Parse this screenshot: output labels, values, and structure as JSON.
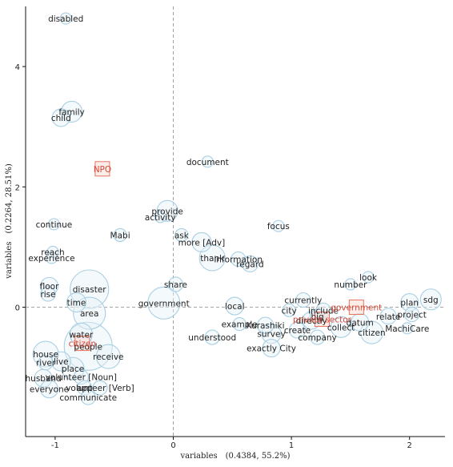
{
  "chart_data": {
    "type": "scatter",
    "title": "",
    "xlabel": "variables　(0.4384,  55.2%)",
    "ylabel": "variables　(0.2264,  28.51%)",
    "xlim": [
      -1.25,
      2.3
    ],
    "ylim": [
      -2.15,
      5.0
    ],
    "xticks": [
      -1,
      0,
      1,
      2
    ],
    "yticks": [
      0,
      2,
      4
    ],
    "reference_lines": {
      "x": 0,
      "y": 0,
      "style": "dashed"
    },
    "colors": {
      "words": "#a9cfe3",
      "variables": "#e9735f",
      "variable_text": "#d64a3a"
    },
    "words": [
      {
        "label": "disabled",
        "x": -0.91,
        "y": 4.8,
        "size": 7
      },
      {
        "label": "child",
        "x": -0.95,
        "y": 3.15,
        "size": 11
      },
      {
        "label": "family",
        "x": -0.86,
        "y": 3.25,
        "size": 13
      },
      {
        "label": "document",
        "x": 0.29,
        "y": 2.42,
        "size": 7
      },
      {
        "label": "provide",
        "x": -0.05,
        "y": 1.6,
        "size": 13
      },
      {
        "label": "activity",
        "x": -0.11,
        "y": 1.5,
        "size": 7
      },
      {
        "label": "continue",
        "x": -1.01,
        "y": 1.38,
        "size": 7
      },
      {
        "label": "Mabi",
        "x": -0.45,
        "y": 1.2,
        "size": 8
      },
      {
        "label": "ask",
        "x": 0.07,
        "y": 1.2,
        "size": 8
      },
      {
        "label": "more [Adv]",
        "x": 0.24,
        "y": 1.08,
        "size": 12
      },
      {
        "label": "focus",
        "x": 0.89,
        "y": 1.35,
        "size": 7
      },
      {
        "label": "thank",
        "x": 0.33,
        "y": 0.82,
        "size": 16
      },
      {
        "label": "reach",
        "x": -1.02,
        "y": 0.92,
        "size": 7
      },
      {
        "label": "information",
        "x": 0.55,
        "y": 0.8,
        "size": 9
      },
      {
        "label": "regard",
        "x": 0.65,
        "y": 0.72,
        "size": 10
      },
      {
        "label": "experience",
        "x": -1.03,
        "y": 0.82,
        "size": 7
      },
      {
        "label": "look",
        "x": 1.65,
        "y": 0.5,
        "size": 7
      },
      {
        "label": "share",
        "x": 0.02,
        "y": 0.38,
        "size": 9
      },
      {
        "label": "floor",
        "x": -1.05,
        "y": 0.35,
        "size": 11
      },
      {
        "label": "disaster",
        "x": -0.71,
        "y": 0.3,
        "size": 24
      },
      {
        "label": "rise",
        "x": -1.06,
        "y": 0.22,
        "size": 9
      },
      {
        "label": "number",
        "x": 1.5,
        "y": 0.38,
        "size": 7
      },
      {
        "label": "time",
        "x": -0.82,
        "y": 0.08,
        "size": 12
      },
      {
        "label": "currently",
        "x": 1.1,
        "y": 0.12,
        "size": 9
      },
      {
        "label": "sdg",
        "x": 2.18,
        "y": 0.13,
        "size": 13
      },
      {
        "label": "local",
        "x": 0.52,
        "y": 0.02,
        "size": 11
      },
      {
        "label": "government",
        "x": -0.08,
        "y": 0.07,
        "size": 20
      },
      {
        "label": "include",
        "x": 1.27,
        "y": -0.05,
        "size": 9
      },
      {
        "label": "plan",
        "x": 2.0,
        "y": 0.08,
        "size": 11
      },
      {
        "label": "area",
        "x": -0.71,
        "y": -0.1,
        "size": 20
      },
      {
        "label": "city",
        "x": 0.98,
        "y": -0.05,
        "size": 8
      },
      {
        "label": "big",
        "x": 1.22,
        "y": -0.15,
        "size": 9
      },
      {
        "label": "project",
        "x": 2.02,
        "y": -0.12,
        "size": 9
      },
      {
        "label": "relate",
        "x": 1.82,
        "y": -0.15,
        "size": 10
      },
      {
        "label": "datum",
        "x": 1.58,
        "y": -0.25,
        "size": 11
      },
      {
        "label": "Kurashiki",
        "x": 0.78,
        "y": -0.3,
        "size": 10
      },
      {
        "label": "directly",
        "x": 1.17,
        "y": -0.22,
        "size": 11
      },
      {
        "label": "example",
        "x": 0.56,
        "y": -0.28,
        "size": 8
      },
      {
        "label": "create",
        "x": 1.05,
        "y": -0.38,
        "size": 10
      },
      {
        "label": "collect",
        "x": 1.42,
        "y": -0.33,
        "size": 13
      },
      {
        "label": "survey",
        "x": 0.83,
        "y": -0.44,
        "size": 12
      },
      {
        "label": "company",
        "x": 1.22,
        "y": -0.5,
        "size": 9
      },
      {
        "label": "citizen",
        "x": 1.68,
        "y": -0.42,
        "size": 14
      },
      {
        "label": "MachiCare",
        "x": 1.98,
        "y": -0.35,
        "size": 7
      },
      {
        "label": "understood",
        "x": 0.33,
        "y": -0.5,
        "size": 9
      },
      {
        "label": "exactly City",
        "x": 0.83,
        "y": -0.68,
        "size": 11
      },
      {
        "label": "water",
        "x": -0.78,
        "y": -0.45,
        "size": 14
      },
      {
        "label": "people",
        "x": -0.72,
        "y": -0.65,
        "size": 30
      },
      {
        "label": "house",
        "x": -1.08,
        "y": -0.78,
        "size": 16
      },
      {
        "label": "river",
        "x": -1.08,
        "y": -0.92,
        "size": 9
      },
      {
        "label": "live",
        "x": -0.95,
        "y": -0.9,
        "size": 12
      },
      {
        "label": "receive",
        "x": -0.55,
        "y": -0.82,
        "size": 15
      },
      {
        "label": "place",
        "x": -0.85,
        "y": -1.02,
        "size": 14
      },
      {
        "label": "volunteer [Noun]",
        "x": -0.78,
        "y": -1.16,
        "size": 9
      },
      {
        "label": "husband",
        "x": -1.1,
        "y": -1.18,
        "size": 11
      },
      {
        "label": "app",
        "x": -0.75,
        "y": -1.34,
        "size": 9
      },
      {
        "label": "volunteer [Verb]",
        "x": -0.62,
        "y": -1.34,
        "size": 9
      },
      {
        "label": "everyone",
        "x": -1.05,
        "y": -1.36,
        "size": 11
      },
      {
        "label": "communicate",
        "x": -0.72,
        "y": -1.5,
        "size": 9
      }
    ],
    "variables": [
      {
        "label": "NPO",
        "x": -0.6,
        "y": 2.3
      },
      {
        "label": "government",
        "x": 1.55,
        "y": 0.0
      },
      {
        "label": "citizen",
        "x": -0.77,
        "y": -0.6
      },
      {
        "label": "private sector",
        "x": 1.26,
        "y": -0.2
      }
    ]
  }
}
